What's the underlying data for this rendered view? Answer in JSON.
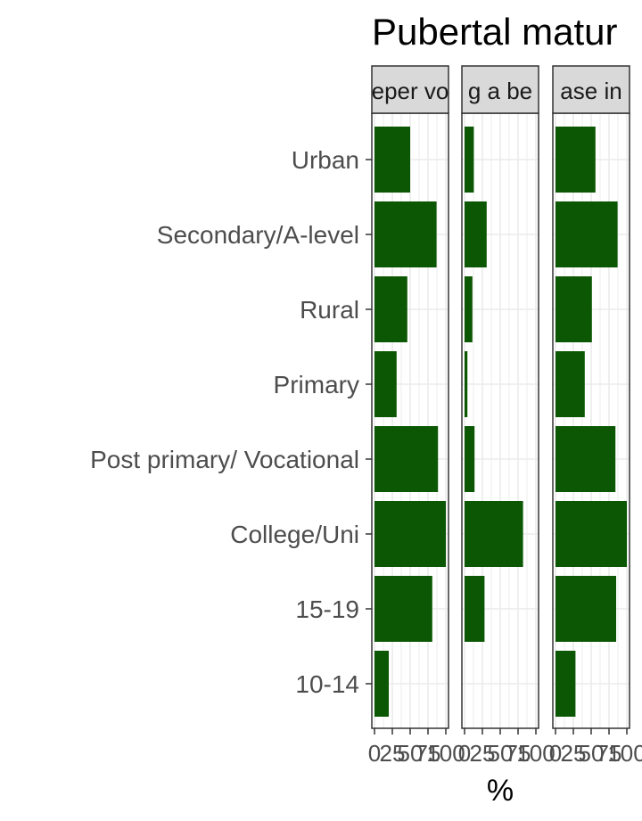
{
  "chart_data": {
    "type": "bar",
    "orientation": "horizontal",
    "title": "Pubertal matur",
    "xlabel": "%",
    "ylabel": "",
    "xlim": [
      0,
      100
    ],
    "x_ticks": [
      0,
      25,
      50,
      75,
      100
    ],
    "x_tick_labels": [
      "0",
      "25",
      "50",
      "75",
      "100"
    ],
    "grid": true,
    "legend": "none",
    "bar_color": "#0b5703",
    "categories": [
      "Urban",
      "Secondary/A-level",
      "Rural",
      "Primary",
      "Post primary/ Vocational",
      "College/Uni",
      "15-19",
      "10-14"
    ],
    "facets": [
      {
        "label": "eper vo",
        "values": [
          50,
          87,
          46,
          31,
          89,
          100,
          81,
          20
        ]
      },
      {
        "label": "g a be",
        "values": [
          13,
          31,
          11,
          4,
          14,
          82,
          28,
          0
        ]
      },
      {
        "label": "ase in",
        "values": [
          56,
          87,
          51,
          41,
          84,
          100,
          85,
          28
        ]
      }
    ]
  }
}
